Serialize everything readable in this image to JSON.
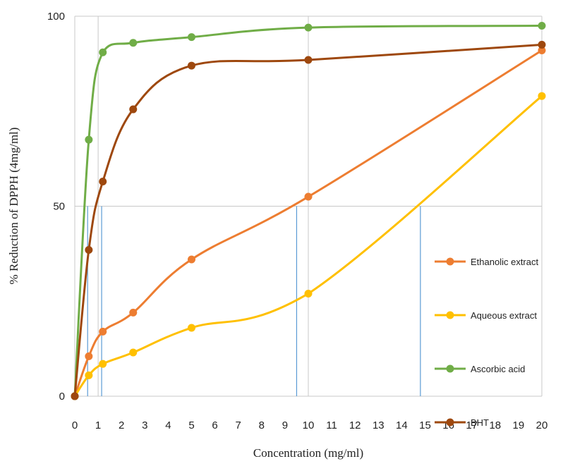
{
  "chart_data": {
    "type": "line",
    "xlabel": "Concentration (mg/ml)",
    "ylabel": "% Reduction of DPPH (4mg/ml)",
    "xlim": [
      0,
      20
    ],
    "ylim": [
      0,
      100
    ],
    "x_ticks": [
      "0",
      "1",
      "2",
      "3",
      "4",
      "5",
      "6",
      "7",
      "8",
      "9",
      "10",
      "11",
      "12",
      "13",
      "14",
      "15",
      "16",
      "17",
      "18",
      "19",
      "20"
    ],
    "y_ticks": [
      "0",
      "50",
      "100"
    ],
    "grid": "horizontal and vertical at major ticks (0, 1, 10, 20)",
    "legend_position": "right",
    "series": [
      {
        "name": "Ethanolic extract",
        "color": "#ED7D31",
        "x": [
          0,
          0.6,
          1.2,
          2.5,
          5,
          10,
          20
        ],
        "y": [
          0,
          10.5,
          17,
          22,
          36,
          52.5,
          91
        ]
      },
      {
        "name": "Aqueous extract",
        "color": "#FFC000",
        "x": [
          0,
          0.6,
          1.2,
          2.5,
          5,
          10,
          20
        ],
        "y": [
          0,
          5.5,
          8.5,
          11.5,
          18,
          27,
          79
        ]
      },
      {
        "name": "Ascorbic acid",
        "color": "#70AD47",
        "x": [
          0,
          0.6,
          1.2,
          2.5,
          5,
          10,
          20
        ],
        "y": [
          0,
          67.5,
          90.5,
          93,
          94.5,
          97,
          97.5
        ]
      },
      {
        "name": "BHT",
        "color": "#9E480E",
        "x": [
          0,
          0.6,
          1.2,
          2.5,
          5,
          10,
          20
        ],
        "y": [
          0,
          38.5,
          56.5,
          75.5,
          87,
          88.5,
          92.5
        ]
      }
    ],
    "annotations": {
      "ic50_drop_lines_x": [
        0.55,
        1.15,
        9.5,
        14.8
      ],
      "ic50_y": 50,
      "line_color": "#5B9BD5"
    }
  }
}
